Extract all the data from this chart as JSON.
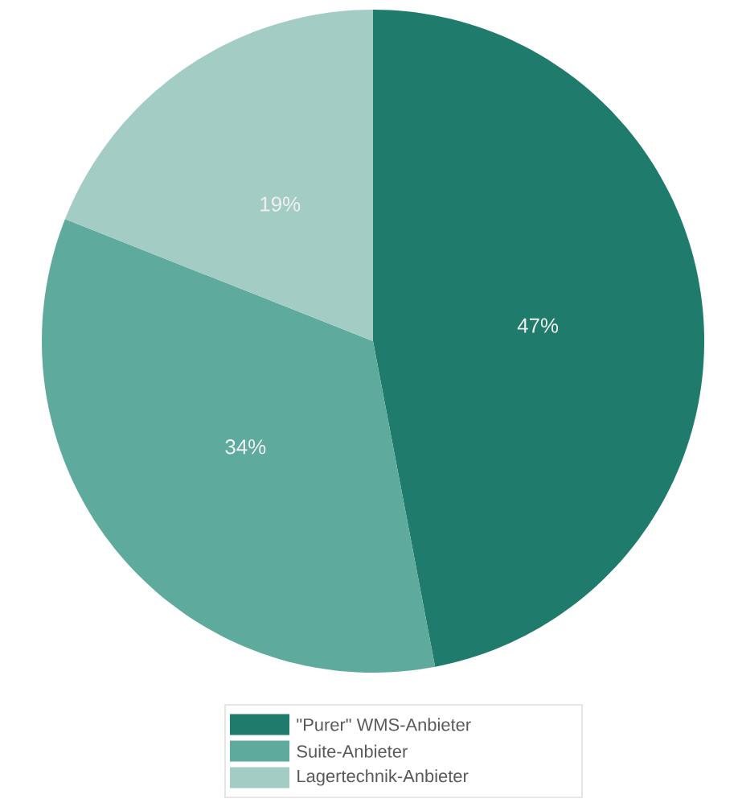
{
  "chart_data": {
    "type": "pie",
    "categories": [
      "\"Purer\" WMS-Anbieter",
      "Suite-Anbieter",
      "Lagertechnik-Anbieter"
    ],
    "values": [
      47,
      34,
      19
    ],
    "colors": [
      "#1f7b6b",
      "#5eaa9c",
      "#a3ccc4"
    ],
    "value_labels": [
      "47%",
      "34%",
      "19%"
    ],
    "legend": "bottom"
  }
}
